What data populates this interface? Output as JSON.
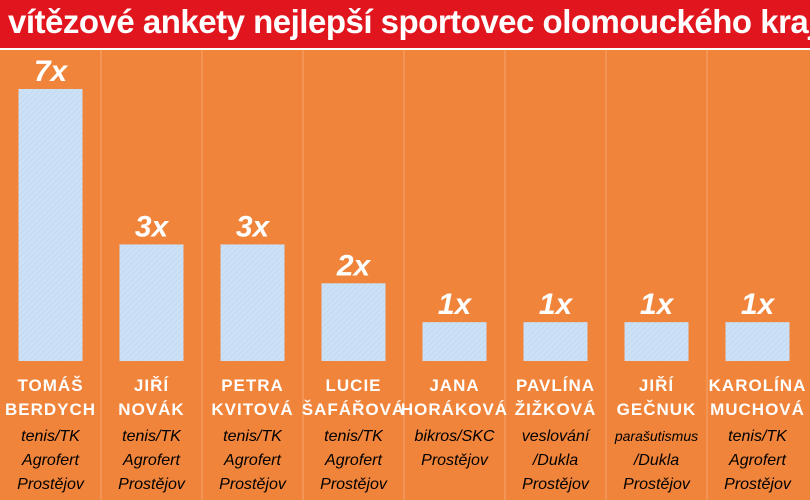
{
  "title": "vítězové ankety nejlepší sportovec olomouckého kraje",
  "colors": {
    "header": "#e1151d",
    "background": "#f0843a",
    "bar": "#cde1f6",
    "divider": "#f5a56e"
  },
  "chart_data": {
    "type": "bar",
    "title": "vítězové ankety nejlepší sportovec olomouckého kraje",
    "xlabel": "",
    "ylabel": "",
    "ylim": [
      0,
      7
    ],
    "grid": false,
    "legend": "none",
    "categories": [
      "TOMÁŠ BERDYCH",
      "JIŘÍ NOVÁK",
      "PETRA KVITOVÁ",
      "LUCIE ŠAFÁŘOVÁ",
      "JANA HORÁKOVÁ",
      "PAVLÍNA ŽIŽKOVÁ",
      "JIŘÍ GEČNUK",
      "KAROLÍNA MUCHOVÁ"
    ],
    "values": [
      7,
      3,
      3,
      2,
      1,
      1,
      1,
      1
    ],
    "value_labels": [
      "7x",
      "3x",
      "3x",
      "2x",
      "1x",
      "1x",
      "1x",
      "1x"
    ],
    "athletes": [
      {
        "name": [
          "TOMÁŠ",
          "BERDYCH"
        ],
        "club": [
          "tenis/TK",
          "Agrofert",
          "Prostějov"
        ]
      },
      {
        "name": [
          "JIŘÍ",
          "NOVÁK"
        ],
        "club": [
          "tenis/TK",
          "Agrofert",
          "Prostějov"
        ]
      },
      {
        "name": [
          "PETRA",
          "KVITOVÁ"
        ],
        "club": [
          "tenis/TK",
          "Agrofert",
          "Prostějov"
        ]
      },
      {
        "name": [
          "LUCIE",
          "ŠAFÁŘOVÁ"
        ],
        "club": [
          "tenis/TK",
          "Agrofert",
          "Prostějov"
        ]
      },
      {
        "name": [
          "JANA",
          "HORÁKOVÁ"
        ],
        "club": [
          "bikros/SKC",
          "Prostějov"
        ]
      },
      {
        "name": [
          "PAVLÍNA",
          "ŽIŽKOVÁ"
        ],
        "club": [
          "veslování",
          "/Dukla",
          "Prostějov"
        ]
      },
      {
        "name": [
          "JIŘÍ",
          "GEČNUK"
        ],
        "club": [
          "parašutismus",
          "/Dukla",
          "Prostějov"
        ]
      },
      {
        "name": [
          "KAROLÍNA",
          "MUCHOVÁ"
        ],
        "club": [
          "tenis/TK",
          "Agrofert",
          "Prostějov"
        ]
      }
    ]
  }
}
